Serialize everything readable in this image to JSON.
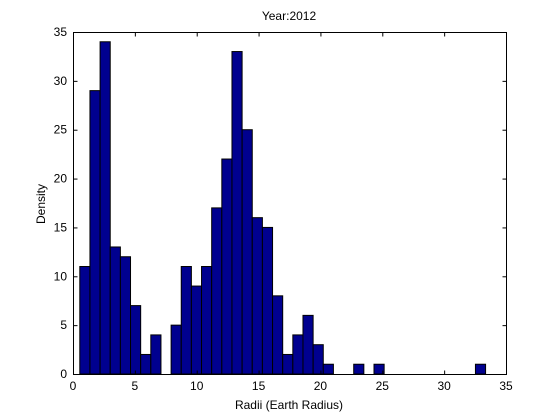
{
  "chart_data": {
    "type": "bar",
    "title": "Year:2012",
    "xlabel": "Radii (Earth Radius)",
    "ylabel": "Density",
    "xlim": [
      0,
      35
    ],
    "ylim": [
      0,
      35
    ],
    "xticks": [
      0,
      5,
      10,
      15,
      20,
      25,
      30,
      35
    ],
    "yticks": [
      0,
      5,
      10,
      15,
      20,
      25,
      30,
      35
    ],
    "grid": false,
    "bar_color": "#00008f",
    "bar_edge_color": "#000000",
    "bin_width": 0.82,
    "bins": [
      {
        "x0": 0.55,
        "value": 11
      },
      {
        "x0": 1.37,
        "value": 29
      },
      {
        "x0": 2.19,
        "value": 34
      },
      {
        "x0": 3.01,
        "value": 13
      },
      {
        "x0": 3.83,
        "value": 12
      },
      {
        "x0": 4.65,
        "value": 7
      },
      {
        "x0": 5.47,
        "value": 2
      },
      {
        "x0": 6.29,
        "value": 4
      },
      {
        "x0": 7.93,
        "value": 5
      },
      {
        "x0": 8.75,
        "value": 11
      },
      {
        "x0": 9.57,
        "value": 9
      },
      {
        "x0": 10.39,
        "value": 11
      },
      {
        "x0": 11.21,
        "value": 17
      },
      {
        "x0": 12.03,
        "value": 22
      },
      {
        "x0": 12.85,
        "value": 33
      },
      {
        "x0": 13.67,
        "value": 25
      },
      {
        "x0": 14.49,
        "value": 16
      },
      {
        "x0": 15.31,
        "value": 15
      },
      {
        "x0": 16.13,
        "value": 8
      },
      {
        "x0": 16.95,
        "value": 2
      },
      {
        "x0": 17.77,
        "value": 4
      },
      {
        "x0": 18.59,
        "value": 6
      },
      {
        "x0": 19.41,
        "value": 3
      },
      {
        "x0": 20.23,
        "value": 1
      },
      {
        "x0": 22.69,
        "value": 1
      },
      {
        "x0": 24.33,
        "value": 1
      },
      {
        "x0": 32.53,
        "value": 1
      }
    ]
  }
}
